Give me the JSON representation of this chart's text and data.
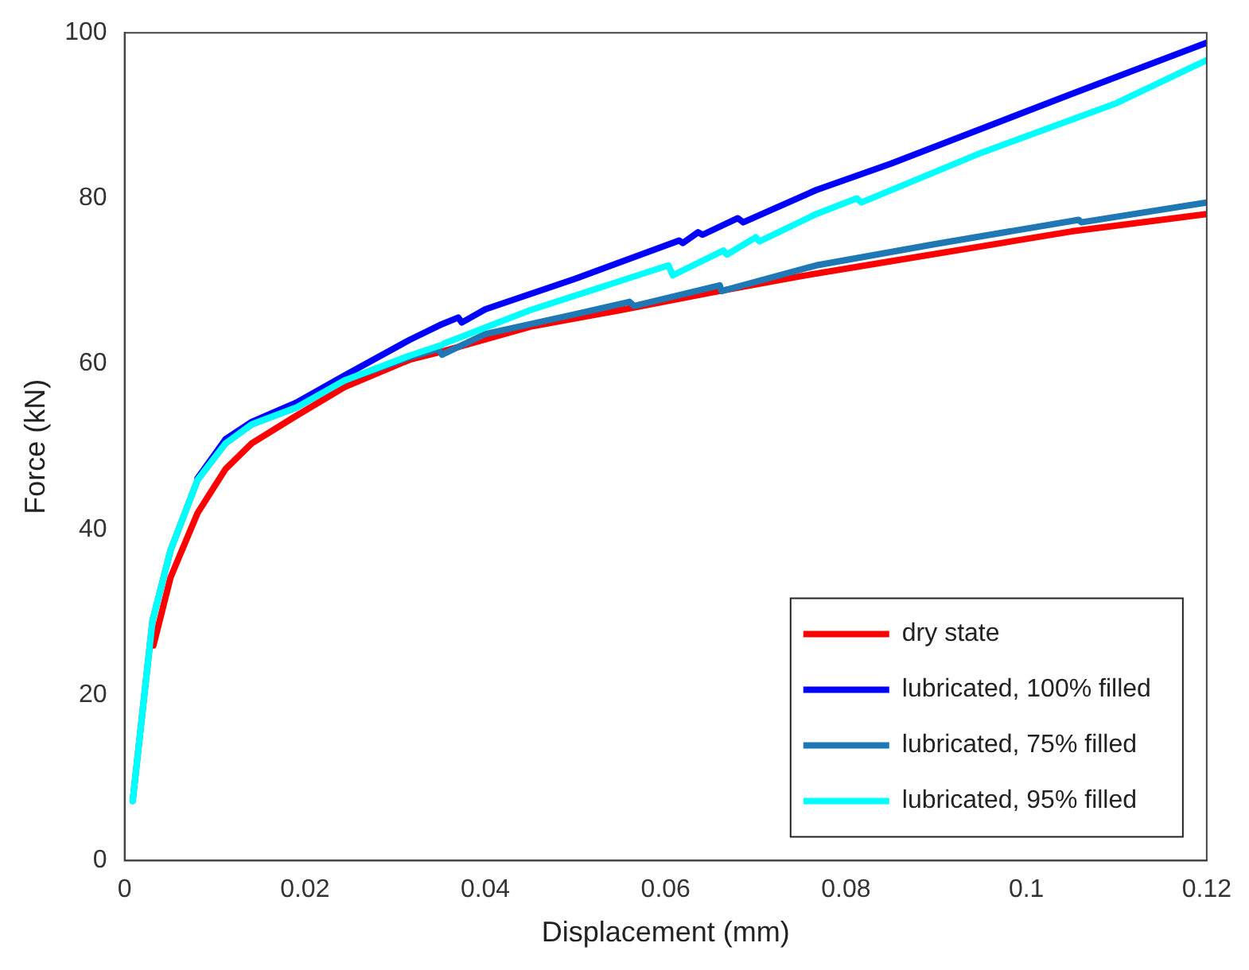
{
  "chart_data": {
    "type": "line",
    "xlabel": "Displacement (mm)",
    "ylabel": "Force (kN)",
    "xlim": [
      0,
      0.12
    ],
    "xticks": [
      0,
      0.02,
      0.04,
      0.06,
      0.08,
      0.1,
      0.12
    ],
    "ylim": [
      0,
      100
    ],
    "yticks": [
      0,
      20,
      40,
      60,
      80,
      100
    ],
    "grid": false,
    "legend": "bottom right",
    "marker": "none",
    "line_style": "solid",
    "series": [
      {
        "name": "dry state",
        "color": "#ff0000",
        "x": [
          0.0032,
          0.0051,
          0.0081,
          0.0112,
          0.0141,
          0.019,
          0.0244,
          0.0316,
          0.0352,
          0.045,
          0.055,
          0.065,
          0.075,
          0.085,
          0.095,
          0.105,
          0.12
        ],
        "values": [
          26,
          34.2,
          42,
          47.3,
          50.4,
          53.7,
          57.2,
          60.5,
          61.5,
          64.5,
          66.5,
          68.6,
          70.6,
          72.4,
          74.2,
          76,
          78.1
        ]
      },
      {
        "name": "lubricated, 100% filled",
        "color": "#0000ff",
        "x": [
          0.0081,
          0.0112,
          0.0141,
          0.019,
          0.0244,
          0.0316,
          0.0352,
          0.037,
          0.0374,
          0.04,
          0.05,
          0.0615,
          0.0619,
          0.0636,
          0.0641,
          0.068,
          0.0686,
          0.0767,
          0.085,
          0.095,
          0.105,
          0.12
        ],
        "values": [
          46.2,
          50.9,
          53,
          55.3,
          58.6,
          62.9,
          64.8,
          65.6,
          65,
          66.6,
          70.3,
          74.9,
          74.6,
          75.9,
          75.6,
          77.6,
          77.1,
          81,
          84.2,
          88.4,
          92.6,
          98.8
        ]
      },
      {
        "name": "lubricated, 75% filled",
        "color": "#1f77b4",
        "x": [
          0.0009,
          0.0031,
          0.0051,
          0.0081,
          0.0112,
          0.0141,
          0.019,
          0.0244,
          0.0316,
          0.0348,
          0.0352,
          0.04,
          0.05,
          0.056,
          0.0565,
          0.066,
          0.0662,
          0.0767,
          0.09,
          0.1058,
          0.1061,
          0.12
        ],
        "values": [
          7.2,
          29,
          37.5,
          46,
          50.4,
          52.7,
          54.7,
          58,
          60.8,
          61.8,
          61.1,
          63.6,
          66,
          67.5,
          67,
          69.5,
          68.8,
          71.9,
          74.5,
          77.4,
          77.1,
          79.5
        ]
      },
      {
        "name": "lubricated, 95% filled",
        "color": "#00ffff",
        "x": [
          0.0009,
          0.0031,
          0.0051,
          0.0081,
          0.0112,
          0.0141,
          0.019,
          0.0244,
          0.0316,
          0.0352,
          0.0355,
          0.045,
          0.0603,
          0.0608,
          0.0664,
          0.0668,
          0.07,
          0.0704,
          0.0767,
          0.0812,
          0.0817,
          0.095,
          0.11,
          0.12
        ],
        "values": [
          7.2,
          29,
          37.5,
          46,
          50.4,
          52.7,
          54.7,
          58,
          61,
          62.3,
          62.5,
          66.5,
          71.9,
          70.7,
          73.7,
          73.2,
          75.3,
          74.8,
          78.1,
          80,
          79.5,
          85.5,
          91.5,
          96.7
        ]
      }
    ]
  }
}
